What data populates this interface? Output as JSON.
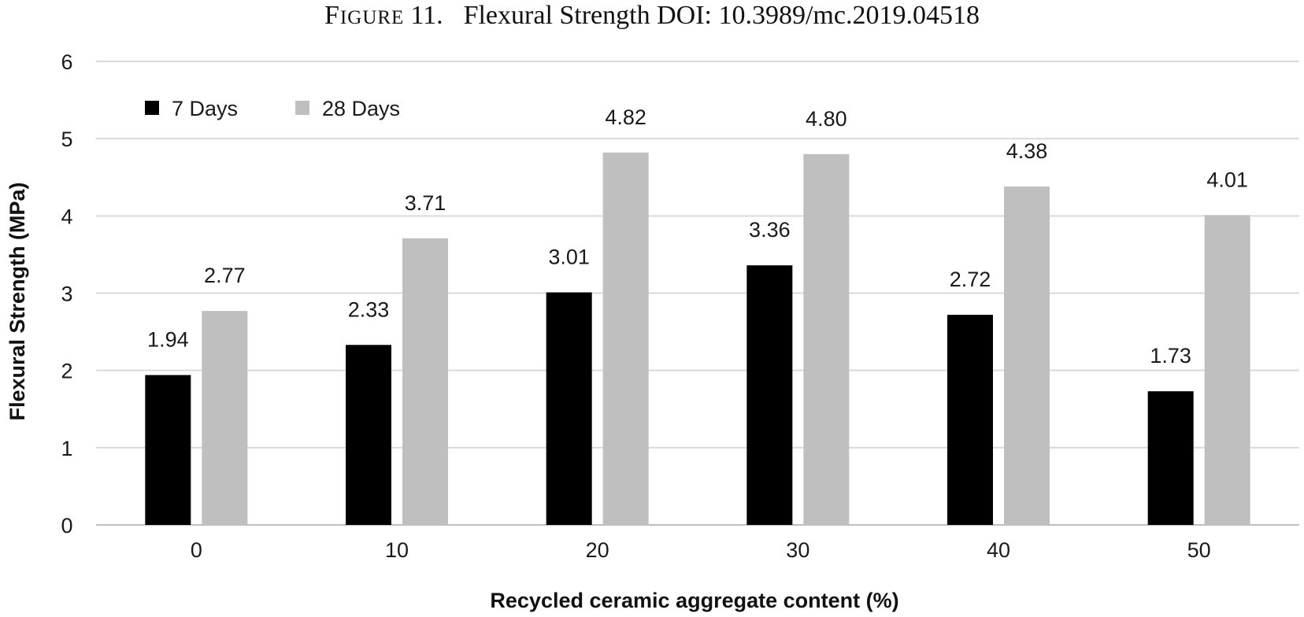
{
  "figure": {
    "label_lead": "F",
    "label_rest": "IGURE",
    "number": "11.",
    "caption": "Flexural Strength DOI: 10.3989/mc.2019.04518"
  },
  "chart_data": {
    "type": "bar",
    "title": "Flexural Strength DOI: 10.3989/mc.2019.04518",
    "xlabel": "Recycled ceramic aggregate content (%)",
    "ylabel": "Flexural Strength (MPa)",
    "categories": [
      "0",
      "10",
      "20",
      "30",
      "40",
      "50"
    ],
    "ylim": [
      0,
      6
    ],
    "yticks": [
      0,
      1,
      2,
      3,
      4,
      5,
      6
    ],
    "grid": true,
    "legend_position": "top-left",
    "series": [
      {
        "name": "7 Days",
        "color": "#000000",
        "values": [
          1.94,
          2.33,
          3.01,
          3.36,
          2.72,
          1.73
        ],
        "labels": [
          "1.94",
          "2.33",
          "3.01",
          "3.36",
          "2.72",
          "1.73"
        ]
      },
      {
        "name": "28 Days",
        "color": "#bfbfbf",
        "values": [
          2.77,
          3.71,
          4.82,
          4.8,
          4.38,
          4.01
        ],
        "labels": [
          "2.77",
          "3.71",
          "4.82",
          "4.80",
          "4.38",
          "4.01"
        ]
      }
    ]
  }
}
